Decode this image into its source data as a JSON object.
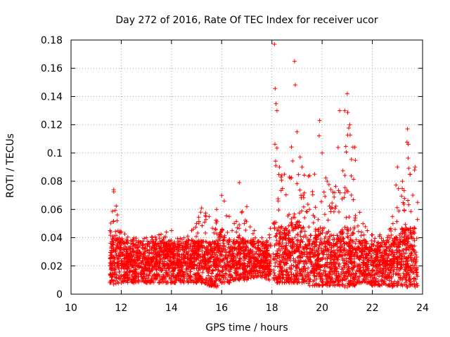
{
  "chart_data": {
    "type": "scatter",
    "title": "Day 272 of 2016, Rate Of TEC Index for receiver ucor",
    "xlabel": "GPS time / hours",
    "ylabel": "ROTI / TECUs",
    "xlim": [
      10,
      24
    ],
    "ylim": [
      0,
      0.18
    ],
    "xticks": [
      10,
      12,
      14,
      16,
      18,
      20,
      22,
      24
    ],
    "xtick_labels": [
      "10",
      "12",
      "14",
      "16",
      "18",
      "20",
      "22",
      "24"
    ],
    "yticks": [
      0,
      0.02,
      0.04,
      0.06,
      0.08,
      0.1,
      0.12,
      0.14,
      0.16,
      0.18
    ],
    "ytick_labels": [
      "0",
      "0.02",
      "0.04",
      "0.06",
      "0.08",
      "0.1",
      "0.12",
      "0.14",
      "0.16",
      "0.18"
    ],
    "grid": true,
    "marker": "+",
    "series_color": "#ff0000",
    "series": [
      {
        "name": "ROTI",
        "envelope": {
          "x": [
            11.55,
            11.7,
            12.0,
            12.5,
            13.0,
            13.5,
            13.8,
            14.0,
            14.5,
            15.0,
            15.2,
            15.5,
            15.8,
            16.0,
            16.1,
            16.3,
            16.5,
            16.7,
            16.9,
            17.0,
            17.3,
            17.6,
            17.9,
            18.0,
            18.1,
            18.2,
            18.3,
            18.5,
            18.7,
            18.9,
            19.0,
            19.2,
            19.5,
            19.7,
            19.9,
            20.0,
            20.2,
            20.5,
            20.7,
            20.9,
            21.0,
            21.1,
            21.3,
            21.5,
            21.8,
            22.0,
            22.3,
            22.6,
            22.8,
            23.0,
            23.2,
            23.4,
            23.5,
            23.7,
            23.8
          ],
          "y_low": [
            0.008,
            0.007,
            0.008,
            0.008,
            0.008,
            0.008,
            0.008,
            0.008,
            0.008,
            0.008,
            0.008,
            0.006,
            0.005,
            0.008,
            0.008,
            0.008,
            0.01,
            0.01,
            0.01,
            0.01,
            0.012,
            0.012,
            0.01,
            0.01,
            0.01,
            0.008,
            0.008,
            0.008,
            0.008,
            0.008,
            0.008,
            0.008,
            0.006,
            0.006,
            0.006,
            0.006,
            0.006,
            0.006,
            0.006,
            0.005,
            0.005,
            0.006,
            0.006,
            0.008,
            0.008,
            0.006,
            0.006,
            0.006,
            0.005,
            0.006,
            0.006,
            0.005,
            0.006,
            0.005,
            0.006
          ],
          "y_high": [
            0.045,
            0.074,
            0.044,
            0.04,
            0.04,
            0.042,
            0.044,
            0.045,
            0.04,
            0.05,
            0.061,
            0.055,
            0.06,
            0.07,
            0.066,
            0.055,
            0.05,
            0.079,
            0.05,
            0.062,
            0.045,
            0.04,
            0.042,
            0.08,
            0.177,
            0.13,
            0.09,
            0.085,
            0.083,
            0.165,
            0.115,
            0.09,
            0.084,
            0.085,
            0.123,
            0.1,
            0.08,
            0.072,
            0.13,
            0.13,
            0.142,
            0.12,
            0.104,
            0.058,
            0.045,
            0.042,
            0.042,
            0.04,
            0.055,
            0.09,
            0.08,
            0.117,
            0.085,
            0.09,
            0.065
          ],
          "median": [
            0.02,
            0.022,
            0.02,
            0.02,
            0.02,
            0.02,
            0.02,
            0.02,
            0.02,
            0.02,
            0.02,
            0.02,
            0.02,
            0.025,
            0.022,
            0.02,
            0.02,
            0.022,
            0.02,
            0.02,
            0.02,
            0.02,
            0.02,
            0.02,
            0.03,
            0.025,
            0.025,
            0.025,
            0.025,
            0.03,
            0.03,
            0.025,
            0.022,
            0.022,
            0.025,
            0.025,
            0.022,
            0.02,
            0.025,
            0.025,
            0.025,
            0.025,
            0.022,
            0.02,
            0.02,
            0.02,
            0.02,
            0.02,
            0.02,
            0.022,
            0.025,
            0.025,
            0.025,
            0.025,
            0.02
          ]
        },
        "gaps": [
          [
            17.95,
            18.05
          ]
        ]
      }
    ]
  }
}
